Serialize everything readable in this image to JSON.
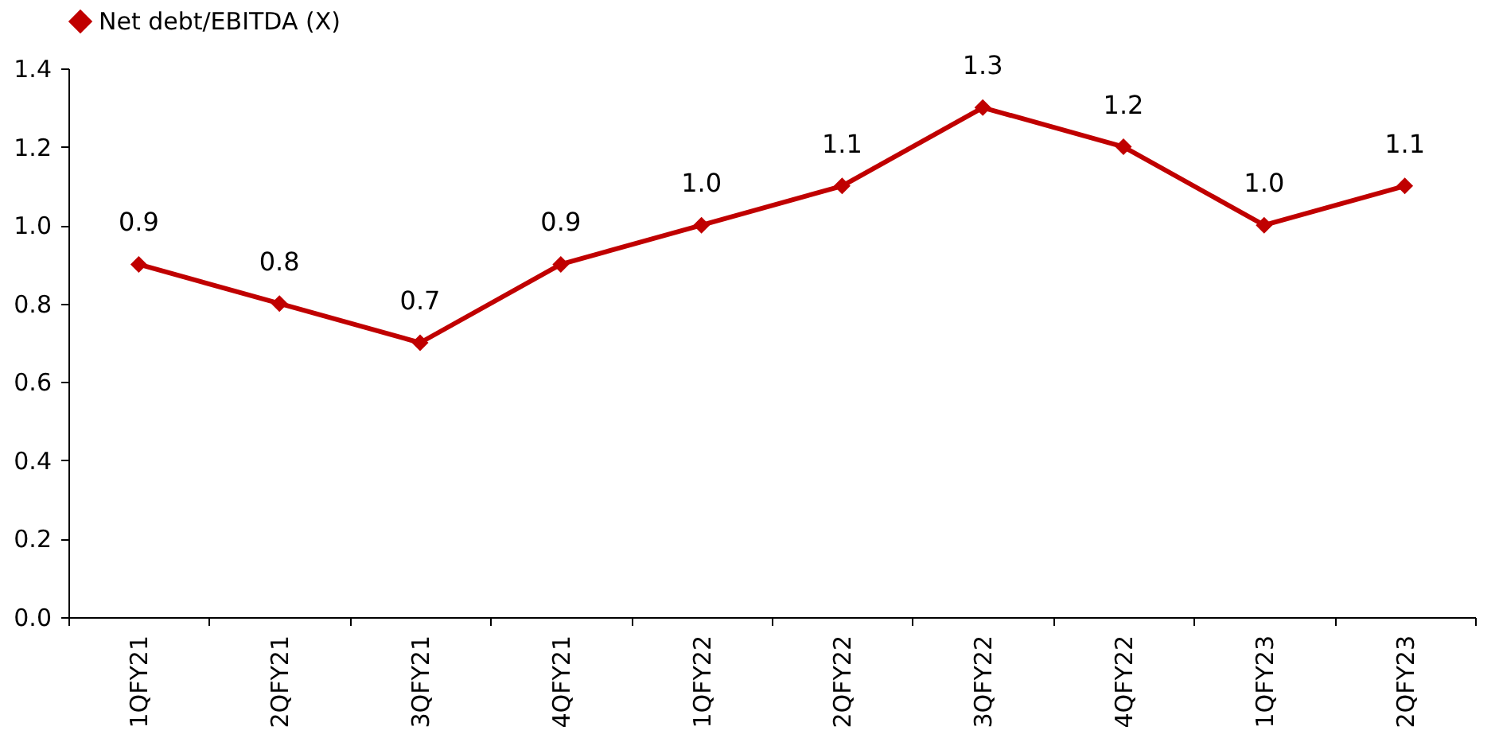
{
  "chart_data": {
    "type": "line",
    "categories": [
      "1QFY21",
      "2QFY21",
      "3QFY21",
      "4QFY21",
      "1QFY22",
      "2QFY22",
      "3QFY22",
      "4QFY22",
      "1QFY23",
      "2QFY23"
    ],
    "series": [
      {
        "name": "Net debt/EBITDA (X)",
        "color": "#c00000",
        "values": [
          0.9,
          0.8,
          0.7,
          0.9,
          1.0,
          1.1,
          1.3,
          1.2,
          1.0,
          1.1
        ],
        "value_labels": [
          "0.9",
          "0.8",
          "0.7",
          "0.9",
          "1.0",
          "1.1",
          "1.3",
          "1.2",
          "1.0",
          "1.1"
        ]
      }
    ],
    "ylim": [
      0,
      1.4
    ],
    "yticks": [
      {
        "value": 0,
        "label": "0.0"
      },
      {
        "value": 0.2,
        "label": "0.2"
      },
      {
        "value": 0.4,
        "label": "0.4"
      },
      {
        "value": 0.6,
        "label": "0.6"
      },
      {
        "value": 0.8,
        "label": "0.8"
      },
      {
        "value": 1,
        "label": "1.0"
      },
      {
        "value": 1.2,
        "label": "1.2"
      },
      {
        "value": 1.4,
        "label": "1.4"
      }
    ],
    "grid": false,
    "legend": "top",
    "marker": "diamond",
    "line_style": "solid"
  }
}
